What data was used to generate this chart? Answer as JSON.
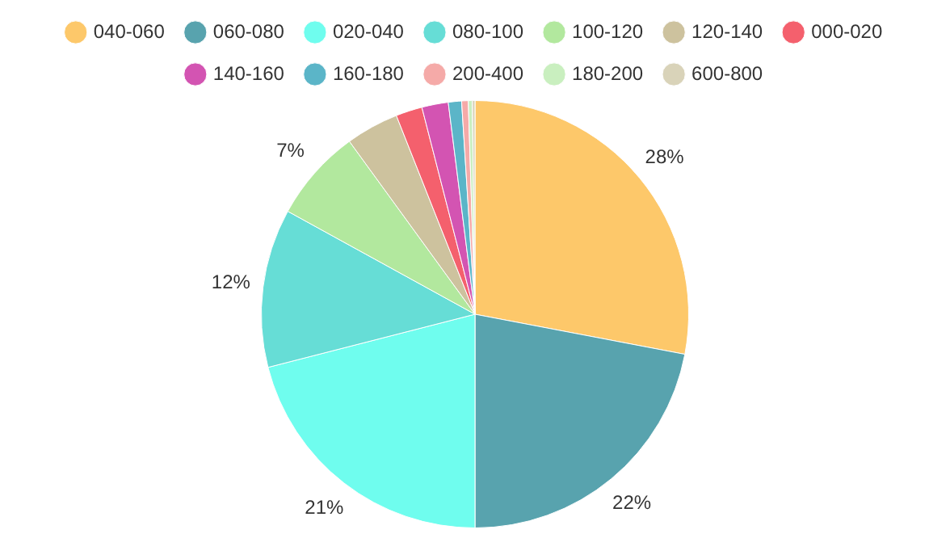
{
  "chart_data": {
    "type": "pie",
    "categories": [
      "040-060",
      "060-080",
      "020-040",
      "080-100",
      "100-120",
      "120-140",
      "000-020",
      "140-160",
      "160-180",
      "200-400",
      "180-200",
      "600-800"
    ],
    "values": [
      28,
      22,
      21,
      12,
      7,
      4,
      2,
      2,
      1,
      0.5,
      0.3,
      0.2
    ],
    "colors": [
      "#fdc86a",
      "#58a3ae",
      "#6ffdee",
      "#66ddd6",
      "#b2e89e",
      "#cdc29e",
      "#f4606d",
      "#d354b2",
      "#5bb5c8",
      "#f5aaa8",
      "#c9efbf",
      "#d9d3b9"
    ],
    "value_labels": [
      "28%",
      "22%",
      "21%",
      "12%",
      "7%",
      null,
      null,
      null,
      null,
      null,
      null,
      null
    ],
    "legend": "top"
  }
}
